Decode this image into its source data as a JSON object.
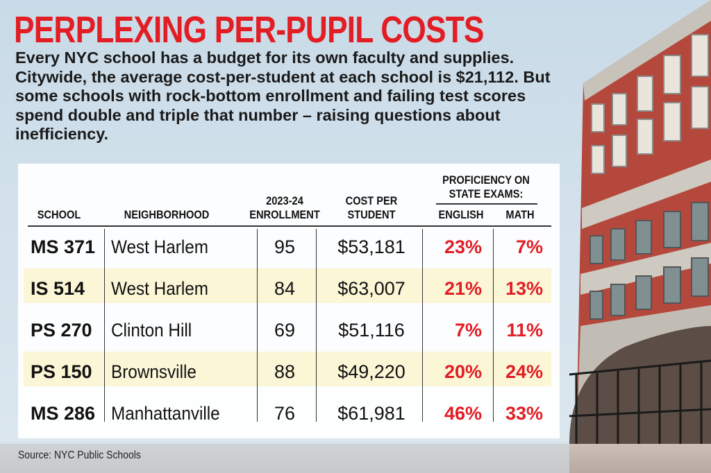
{
  "colors": {
    "accent_red": "#e21d24",
    "background": "#d3e2ec",
    "row_band": "#fbf6d6",
    "text": "#111111"
  },
  "title": "PERPLEXING PER-PUPIL COSTS",
  "intro": "Every NYC school has a budget for its own faculty and supplies. Citywide, the average cost-per-student at each school is $21,112. But some schools with rock-bottom enrollment and failing test scores spend double and triple that number – raising questions about inefficiency.",
  "source": "Source: NYC Public Schools",
  "chart_data": {
    "type": "table",
    "title": "PERPLEXING PER-PUPIL COSTS",
    "headers": {
      "school": "SCHOOL",
      "neighborhood": "NEIGHBORHOOD",
      "enrollment_line1": "2023-24",
      "enrollment_line2": "ENROLLMENT",
      "cost_line1": "COST PER",
      "cost_line2": "STUDENT",
      "proficiency_line1": "PROFICIENCY ON",
      "proficiency_line2": "STATE EXAMS:",
      "english": "ENGLISH",
      "math": "MATH"
    },
    "rows": [
      {
        "school": "MS 371",
        "neighborhood": "West Harlem",
        "enrollment": "95",
        "cost": "$53,181",
        "english": "23%",
        "math": "7%"
      },
      {
        "school": "IS 514",
        "neighborhood": "West Harlem",
        "enrollment": "84",
        "cost": "$63,007",
        "english": "21%",
        "math": "13%"
      },
      {
        "school": "PS 270",
        "neighborhood": "Clinton Hill",
        "enrollment": "69",
        "cost": "$51,116",
        "english": "7%",
        "math": "11%"
      },
      {
        "school": "PS 150",
        "neighborhood": "Brownsville",
        "enrollment": "88",
        "cost": "$49,220",
        "english": "20%",
        "math": "24%"
      },
      {
        "school": "MS 286",
        "neighborhood": "Manhattanville",
        "enrollment": "76",
        "cost": "$61,981",
        "english": "46%",
        "math": "33%"
      }
    ]
  }
}
